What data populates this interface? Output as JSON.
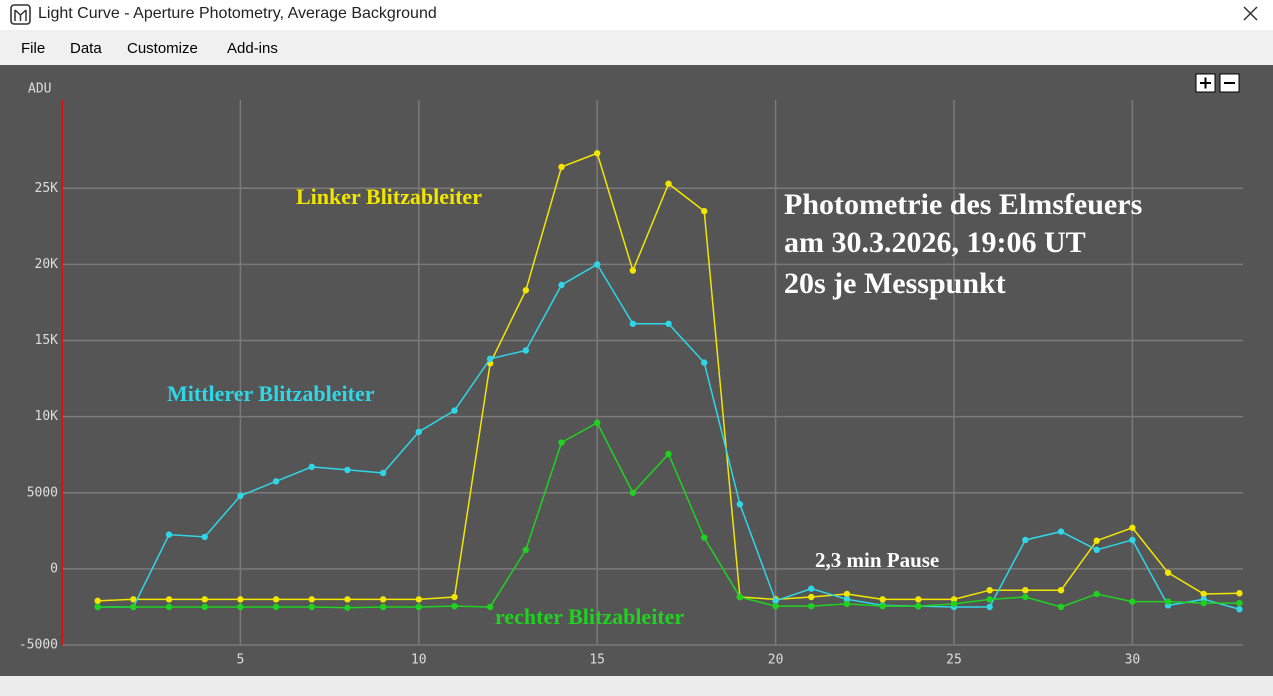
{
  "window": {
    "title": "Light Curve - Aperture Photometry, Average Background",
    "menu": [
      "File",
      "Data",
      "Customize",
      "Add-ins"
    ]
  },
  "chart_data": {
    "type": "line",
    "y_label": "ADU",
    "x": [
      1,
      2,
      3,
      4,
      5,
      6,
      7,
      8,
      9,
      10,
      11,
      12,
      13,
      14,
      15,
      16,
      17,
      18,
      19,
      20,
      21,
      22,
      23,
      24,
      25,
      26,
      27,
      28,
      29,
      30,
      31,
      32,
      33
    ],
    "series": [
      {
        "name": "Linker Blitzableiter",
        "color": "#f2e600",
        "values": [
          -2100,
          -2000,
          -2000,
          -2000,
          -2000,
          -2000,
          -2000,
          -2000,
          -2000,
          -2000,
          -1850,
          13500,
          18300,
          26400,
          27300,
          19600,
          25300,
          23500,
          -1850,
          -2000,
          -1850,
          -1650,
          -2000,
          -2000,
          -2000,
          -1400,
          -1400,
          -1400,
          1850,
          2700,
          -250,
          -1650,
          -1600
        ]
      },
      {
        "name": "Mittlerer Blitzableiter",
        "color": "#2fd6e6",
        "values": [
          -2500,
          -2500,
          2250,
          2100,
          4800,
          5750,
          6700,
          6500,
          6300,
          9000,
          10400,
          13800,
          14350,
          18650,
          20000,
          16100,
          16100,
          13550,
          4250,
          -2100,
          -1300,
          -2000,
          -2400,
          -2450,
          -2500,
          -2500,
          1900,
          2450,
          1250,
          1900,
          -2400,
          -2000,
          -2650
        ]
      },
      {
        "name": "rechter Blitzableiter",
        "color": "#1fd21f",
        "values": [
          -2500,
          -2500,
          -2500,
          -2500,
          -2500,
          -2500,
          -2500,
          -2550,
          -2500,
          -2500,
          -2450,
          -2500,
          1250,
          8300,
          9600,
          5000,
          7550,
          2050,
          -1850,
          -2450,
          -2450,
          -2300,
          -2450,
          -2450,
          -2300,
          -2000,
          -1850,
          -2500,
          -1650,
          -2150,
          -2150,
          -2250,
          -2250
        ]
      }
    ],
    "annotations": [
      "Photometrie des Elmsfeuers",
      "am 30.3.2026, 19:06 UT",
      "20s je Messpunkt",
      "2,3 min Pause"
    ],
    "xlim": [
      0,
      33.1
    ],
    "ylim": [
      -5000,
      30800
    ],
    "xticks": [
      5,
      10,
      15,
      20,
      25,
      30
    ],
    "yticks": [
      -5000,
      0,
      5000,
      {
        "value": 10000,
        "label": "10K"
      },
      {
        "value": 15000,
        "label": "15K"
      },
      {
        "value": 20000,
        "label": "20K"
      },
      {
        "value": 25000,
        "label": "25K"
      }
    ],
    "grid": true
  }
}
